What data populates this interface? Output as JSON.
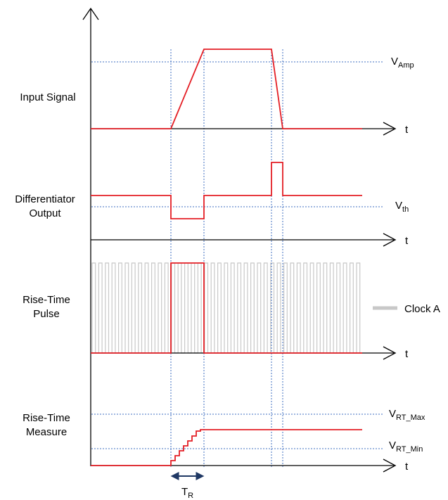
{
  "row_labels": {
    "input_signal": "Input Signal",
    "differentiator_line1": "Differentiator",
    "differentiator_line2": "Output",
    "rise_time_pulse_line1": "Rise-Time",
    "rise_time_pulse_line2": "Pulse",
    "rise_time_measure_line1": "Rise-Time",
    "rise_time_measure_line2": "Measure"
  },
  "time_axis_label": "t",
  "levels": {
    "v_amp": {
      "main": "V",
      "sub": "Amp"
    },
    "v_th": {
      "main": "V",
      "sub": "th"
    },
    "v_rt_max": {
      "main": "V",
      "sub": "RT_Max"
    },
    "v_rt_min": {
      "main": "V",
      "sub": "RT_Min"
    }
  },
  "legend": {
    "clock": "Clock A"
  },
  "interval": {
    "main": "T",
    "sub": "R"
  },
  "colors": {
    "signal": "#e41e25",
    "guide": "#3f6fc0",
    "clock": "#c8c8c8",
    "axis": "#000000",
    "arrow": "#1f3864"
  }
}
